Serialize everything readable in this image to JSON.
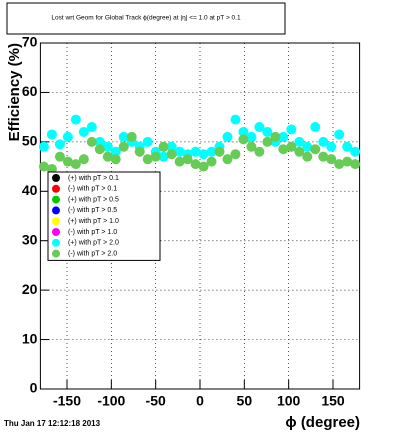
{
  "chart_data": {
    "type": "scatter",
    "title": "Lost wrt Geom for Global Track ϕ(degree) at |η| <= 1.0 at pT > 0.1",
    "xlabel": "ϕ (degree)",
    "ylabel": "Efficiency (%)",
    "timestamp": "Thu Jan 17 12:12:18 2013",
    "xlim": [
      -180,
      180
    ],
    "xticks": [
      -150,
      -100,
      -50,
      0,
      50,
      100,
      150
    ],
    "ylim": [
      0,
      70
    ],
    "yticks": [
      0,
      10,
      20,
      30,
      40,
      50,
      60,
      70
    ],
    "grid": true,
    "legend": "upper left",
    "series": [
      {
        "name": "(+) with pT > 0.1",
        "color": "#000000",
        "x": [],
        "values": []
      },
      {
        "name": "(-) with pT > 0.1",
        "color": "#ff0000",
        "x": [],
        "values": []
      },
      {
        "name": "(+) with pT > 0.5",
        "color": "#00cc00",
        "x": [],
        "values": []
      },
      {
        "name": "(-) with pT > 0.5",
        "color": "#0000ff",
        "x": [],
        "values": []
      },
      {
        "name": "(+) with pT > 1.0",
        "color": "#ffff00",
        "x": [],
        "values": []
      },
      {
        "name": "(-) with pT > 1.0",
        "color": "#ff00ff",
        "x": [],
        "values": []
      },
      {
        "name": "(+) with pT > 2.0",
        "color": "#00ffff",
        "x": [
          -176,
          -167,
          -158,
          -149,
          -140,
          -131,
          -122,
          -113,
          -104,
          -95,
          -86,
          -77,
          -68,
          -59,
          -50,
          -41,
          -32,
          -23,
          -14,
          -5,
          4,
          13,
          22,
          31,
          40,
          49,
          58,
          67,
          76,
          85,
          94,
          103,
          112,
          121,
          130,
          139,
          148,
          157,
          166,
          175
        ],
        "values": [
          49,
          51.5,
          49.5,
          51,
          54.5,
          52,
          53,
          50,
          49,
          48,
          51,
          50,
          49,
          50,
          48,
          47,
          49,
          48,
          47.5,
          48,
          47.5,
          48,
          49,
          51,
          54.5,
          52,
          51,
          53,
          52,
          50,
          51,
          52.5,
          50,
          49,
          53,
          50,
          49,
          51.5,
          49,
          48
        ]
      },
      {
        "name": "(-) with pT > 2.0",
        "color": "#66cc55",
        "x": [
          -176,
          -167,
          -158,
          -149,
          -140,
          -131,
          -122,
          -113,
          -104,
          -95,
          -86,
          -77,
          -68,
          -59,
          -50,
          -41,
          -32,
          -23,
          -14,
          -5,
          4,
          13,
          22,
          31,
          40,
          49,
          58,
          67,
          76,
          85,
          94,
          103,
          112,
          121,
          130,
          139,
          148,
          157,
          166,
          175
        ],
        "values": [
          45,
          44.5,
          47,
          46,
          45.5,
          46.5,
          50,
          48.5,
          47,
          46.5,
          49,
          51,
          48,
          46.5,
          47,
          49,
          47.5,
          46,
          46.5,
          45.5,
          45,
          46,
          48,
          46.5,
          47.5,
          50.5,
          49,
          48,
          50,
          51,
          48.5,
          49,
          48,
          47,
          48.5,
          47,
          46.5,
          45.5,
          46,
          45.5
        ]
      }
    ]
  }
}
